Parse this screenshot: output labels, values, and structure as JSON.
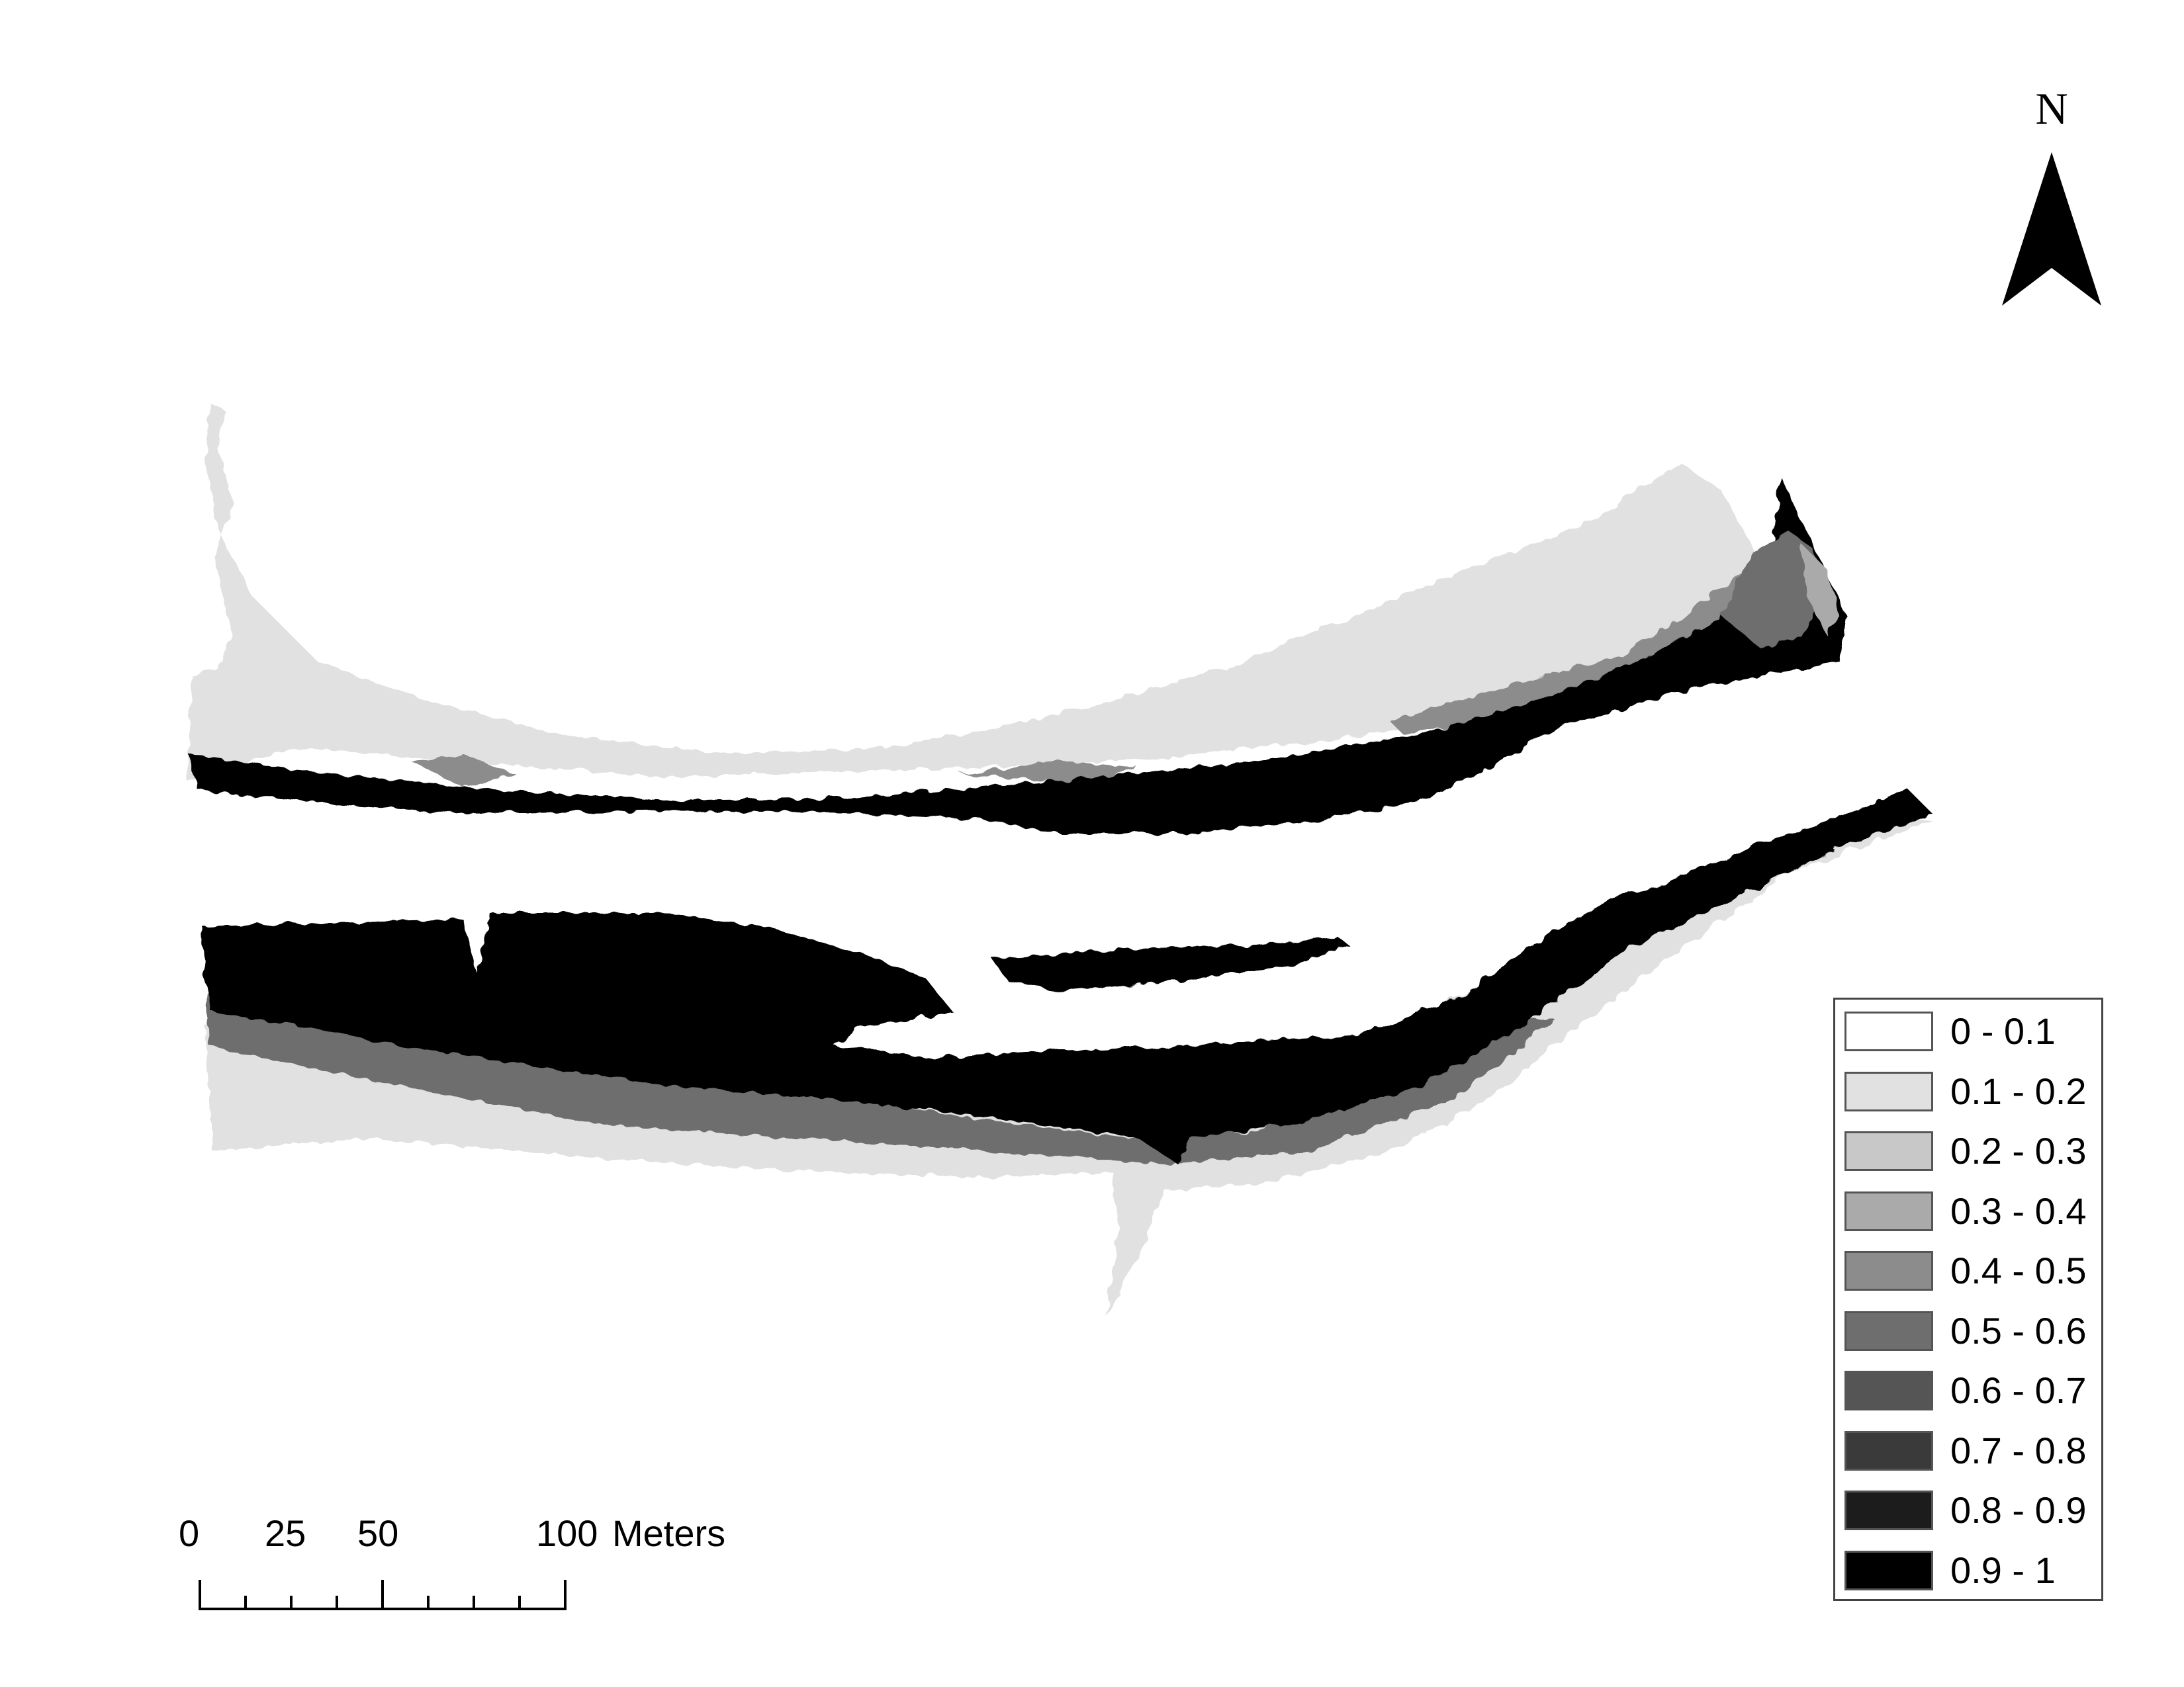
{
  "north_arrow": {
    "label": "N"
  },
  "scale_bar": {
    "tick_labels": [
      "0",
      "25",
      "50",
      "100"
    ],
    "units": "Meters"
  },
  "legend": {
    "classes": [
      {
        "label": "0 - 0.1",
        "color": "#ffffff"
      },
      {
        "label": "0.1 - 0.2",
        "color": "#e1e1e1"
      },
      {
        "label": "0.2 - 0.3",
        "color": "#c8c8c8"
      },
      {
        "label": "0.3 - 0.4",
        "color": "#aaaaaa"
      },
      {
        "label": "0.4 - 0.5",
        "color": "#8c8c8c"
      },
      {
        "label": "0.5 - 0.6",
        "color": "#6e6e6e"
      },
      {
        "label": "0.6 - 0.7",
        "color": "#555555"
      },
      {
        "label": "0.7 - 0.8",
        "color": "#3a3a3a"
      },
      {
        "label": "0.8 - 0.9",
        "color": "#1c1c1c"
      },
      {
        "label": "0.9 - 1",
        "color": "#000000"
      }
    ]
  }
}
